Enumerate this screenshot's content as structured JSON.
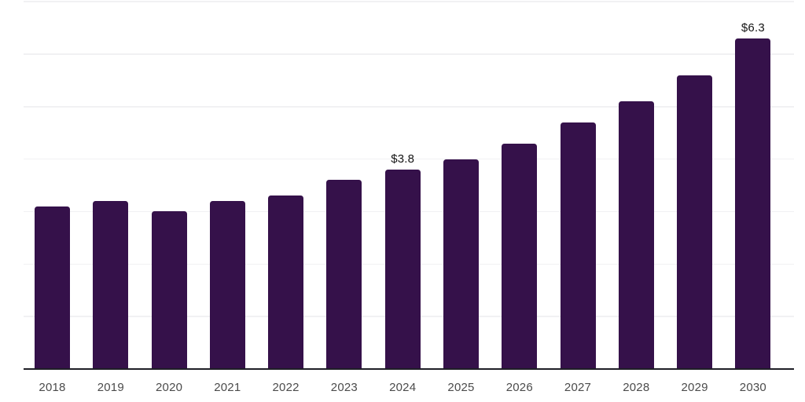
{
  "chart_data": {
    "type": "bar",
    "title": "",
    "xlabel": "",
    "ylabel": "",
    "categories": [
      "2018",
      "2019",
      "2020",
      "2021",
      "2022",
      "2023",
      "2024",
      "2025",
      "2026",
      "2027",
      "2028",
      "2029",
      "2030"
    ],
    "values": [
      3.1,
      3.2,
      3.0,
      3.2,
      3.3,
      3.6,
      3.8,
      4.0,
      4.3,
      4.7,
      5.1,
      5.6,
      6.3
    ],
    "bar_labels": {
      "2024": "$3.8",
      "2030": "$6.3"
    },
    "ylim": [
      0,
      7
    ],
    "gridline_step": 1,
    "grid": "horizontal",
    "legend": "none"
  },
  "colors": {
    "background": "#ffffff",
    "bar": "#35114a",
    "axis_line": "#1f1f26",
    "gridline": "#f1f1f3",
    "tick_label": "#4b4b4b",
    "value_label": "#141414"
  }
}
